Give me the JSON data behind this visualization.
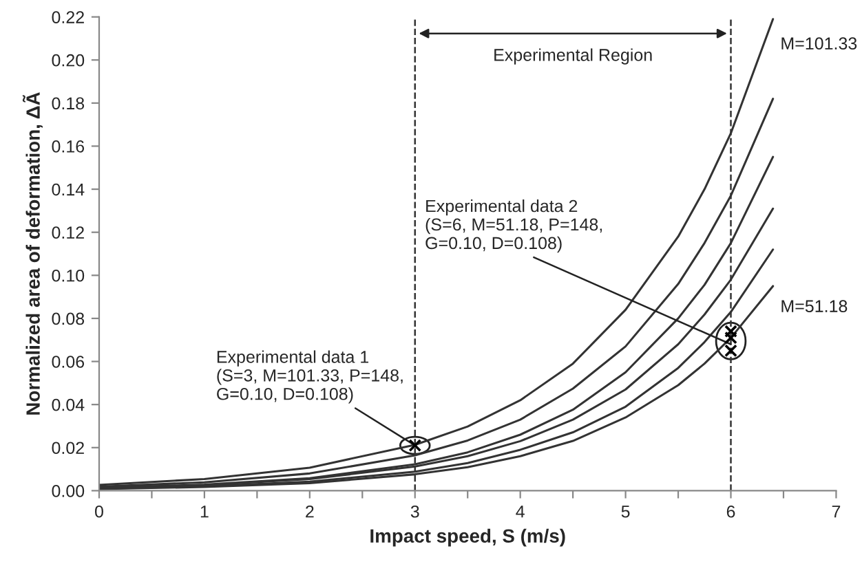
{
  "chart_data": {
    "type": "line",
    "xlabel": "Impact speed, S (m/s)",
    "ylabel": "Normalized area of deformation, ΔÃ",
    "series": [
      {
        "name": "M=101.33",
        "color": "#333333",
        "x": [
          0,
          1,
          2,
          3,
          3.5,
          4,
          4.5,
          5,
          5.5,
          5.75,
          6,
          6.4
        ],
        "values": [
          0.0027,
          0.0054,
          0.0107,
          0.0213,
          0.0298,
          0.042,
          0.059,
          0.084,
          0.118,
          0.14,
          0.166,
          0.219
        ]
      },
      {
        "color": "#333333",
        "x": [
          0,
          1,
          2,
          3,
          3.5,
          4,
          4.5,
          5,
          5.5,
          5.75,
          6,
          6.4
        ],
        "values": [
          0.0019,
          0.0039,
          0.008,
          0.0164,
          0.0233,
          0.033,
          0.0474,
          0.067,
          0.096,
          0.115,
          0.137,
          0.182
        ]
      },
      {
        "color": "#333333",
        "x": [
          0,
          1,
          2,
          3,
          3.5,
          4,
          4.5,
          5,
          5.5,
          5.75,
          6,
          6.4
        ],
        "values": [
          0.0013,
          0.0028,
          0.0058,
          0.0123,
          0.0178,
          0.026,
          0.0376,
          0.055,
          0.08,
          0.0956,
          0.115,
          0.155
        ]
      },
      {
        "color": "#333333",
        "x": [
          0,
          1,
          2,
          3,
          3.5,
          4,
          4.5,
          5,
          5.5,
          5.75,
          6,
          6.4
        ],
        "values": [
          0.0013,
          0.0026,
          0.0054,
          0.0112,
          0.016,
          0.023,
          0.033,
          0.047,
          0.068,
          0.0818,
          0.098,
          0.131
        ]
      },
      {
        "color": "#333333",
        "x": [
          0,
          1,
          2,
          3,
          3.5,
          4,
          4.5,
          5,
          5.5,
          5.75,
          6,
          6.4
        ],
        "values": [
          0.0009,
          0.002,
          0.0042,
          0.0088,
          0.0128,
          0.019,
          0.0271,
          0.039,
          0.057,
          0.069,
          0.083,
          0.112
        ]
      },
      {
        "name": "M=51.18",
        "color": "#333333",
        "x": [
          0,
          1,
          2,
          3,
          3.5,
          4,
          4.5,
          5,
          5.5,
          5.75,
          6,
          6.4
        ],
        "values": [
          0.0008,
          0.0017,
          0.0035,
          0.0076,
          0.0109,
          0.016,
          0.0231,
          0.034,
          0.049,
          0.059,
          0.071,
          0.095
        ]
      },
      {
        "type": "scatter",
        "marker": "cross",
        "color": "#000000",
        "x": [
          3,
          6,
          6,
          6
        ],
        "values": [
          0.021,
          0.074,
          0.071,
          0.065
        ]
      }
    ],
    "ref_lines": [
      {
        "axis": "x",
        "value": 3,
        "line_style": "dashed",
        "color": "#333333"
      },
      {
        "axis": "x",
        "value": 6,
        "line_style": "dashed",
        "color": "#333333"
      }
    ],
    "annotations": [
      "Experimental Region",
      {
        "text": "Experimental data 1\n(S=3, M=101.33, P=148,\nG=0.10, D=0.108)",
        "x": 3,
        "y": 0.021
      },
      {
        "text": "Experimental data 2\n(S=6, M=51.18, P=148,\nG=0.10, D=0.108)",
        "x": 6,
        "y": 0.068
      }
    ],
    "xlim": [
      0,
      7
    ],
    "ylim": [
      0,
      0.22
    ],
    "xticks": [
      0,
      {
        "value": 0.5,
        "label": null
      },
      1,
      {
        "value": 1.5,
        "label": null
      },
      2,
      {
        "value": 2.5,
        "label": null
      },
      3,
      {
        "value": 3.5,
        "label": null
      },
      4,
      {
        "value": 4.5,
        "label": null
      },
      5,
      {
        "value": 5.5,
        "label": null
      },
      6,
      {
        "value": 6.5,
        "label": null
      },
      7
    ],
    "yticks": [
      {
        "value": 0,
        "label": "0.00"
      },
      {
        "value": 0.02,
        "label": "0.02"
      },
      {
        "value": 0.04,
        "label": "0.04"
      },
      {
        "value": 0.06,
        "label": "0.06"
      },
      {
        "value": 0.08,
        "label": "0.08"
      },
      {
        "value": 0.1,
        "label": "0.10"
      },
      {
        "value": 0.12,
        "label": "0.12"
      },
      {
        "value": 0.14,
        "label": "0.14"
      },
      {
        "value": 0.16,
        "label": "0.16"
      },
      {
        "value": 0.18,
        "label": "0.18"
      },
      {
        "value": 0.2,
        "label": "0.20"
      },
      {
        "value": 0.22,
        "label": "0.22"
      }
    ],
    "grid": false,
    "legend": false
  }
}
